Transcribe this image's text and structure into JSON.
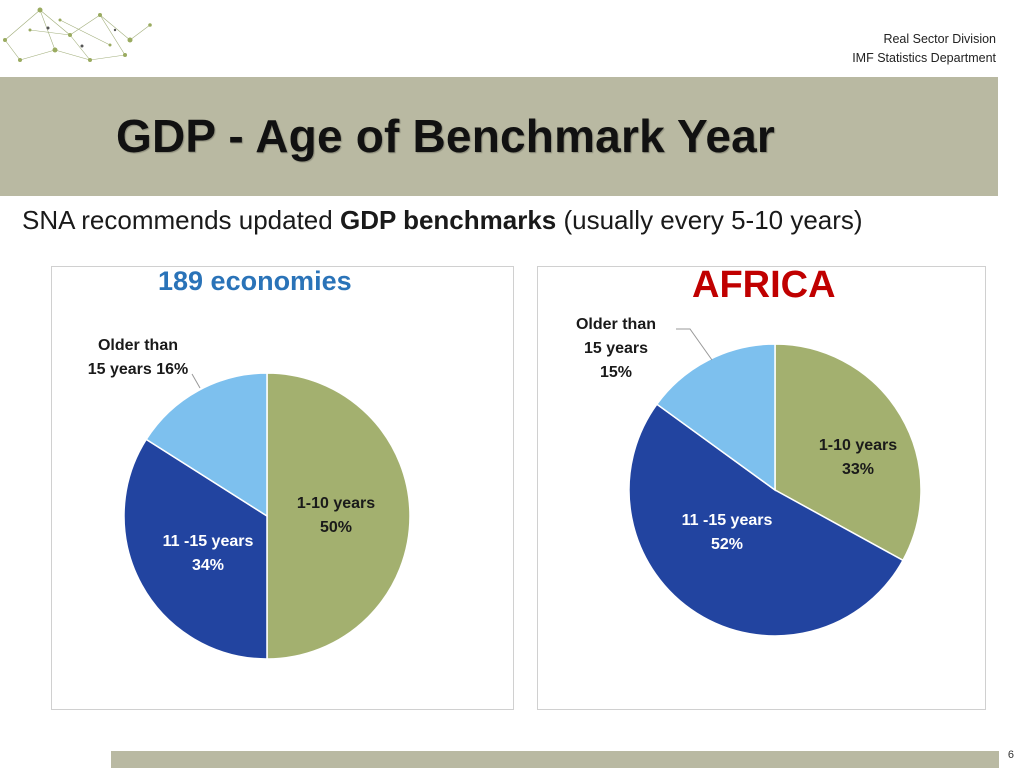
{
  "header": {
    "org_line1": "Real Sector Division",
    "org_line2": "IMF Statistics Department"
  },
  "slide": {
    "title": "GDP - Age of Benchmark Year",
    "subtitle_pre": "SNA recommends updated ",
    "subtitle_bold": "GDP benchmarks",
    "subtitle_post": " (usually every 5-10 years)",
    "page_number": "6"
  },
  "colors": {
    "slice_1_10": "#a3b06f",
    "slice_11_15": "#2244a0",
    "slice_older": "#7dc0ee",
    "title_left": "#2a73b8",
    "title_right": "#c00000",
    "band": "#b9b9a2"
  },
  "chart_data": [
    {
      "type": "pie",
      "title": "189 economies",
      "slices": [
        {
          "label_line1": "1-10 years",
          "label_line2": "50%",
          "value": 50
        },
        {
          "label_line1": "11 -15 years",
          "label_line2": "34%",
          "value": 34
        },
        {
          "label_line1": "Older than",
          "label_line2": "15 years 16%",
          "value": 16
        }
      ]
    },
    {
      "type": "pie",
      "title": "AFRICA",
      "slices": [
        {
          "label_line1": "1-10 years",
          "label_line2": "33%",
          "value": 33
        },
        {
          "label_line1": "11 -15 years",
          "label_line2": "52%",
          "value": 52
        },
        {
          "label_line1": "Older than",
          "label_line2": "15 years",
          "label_line3": "15%",
          "value": 15
        }
      ]
    }
  ]
}
